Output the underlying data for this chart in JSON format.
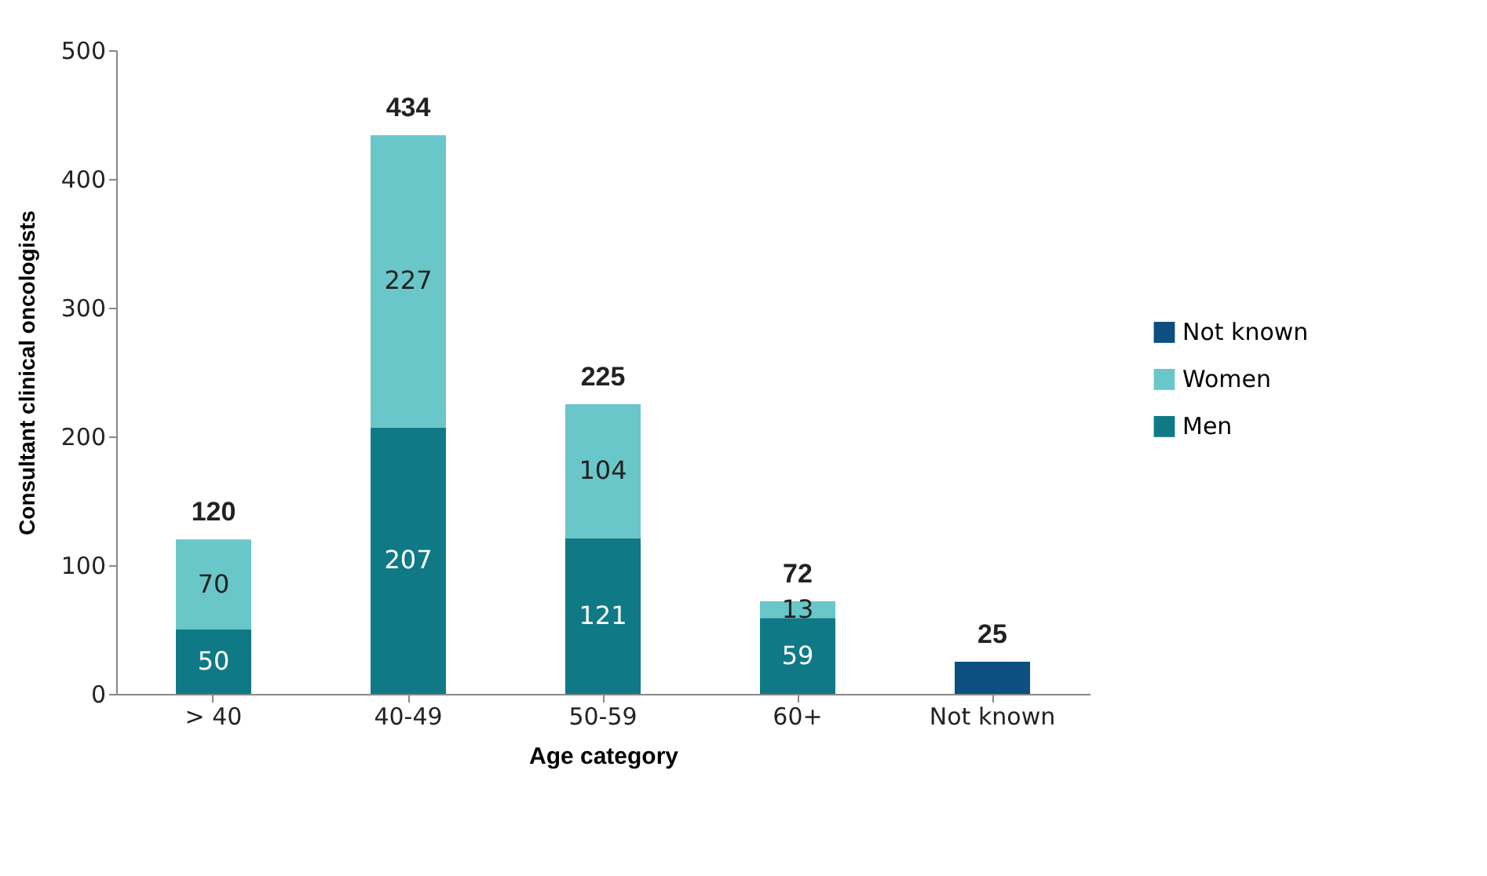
{
  "chart_data": {
    "type": "bar",
    "stacked": true,
    "xlabel": "Age category",
    "ylabel": "Consultant clinical oncologists",
    "categories": [
      "> 40",
      "40-49",
      "50-59",
      "60+",
      "Not known"
    ],
    "series": [
      {
        "name": "Men",
        "color": "#0f7a86",
        "values": [
          50,
          207,
          121,
          59,
          null
        ],
        "value_labels": [
          "50",
          "207",
          "121",
          "59",
          null
        ]
      },
      {
        "name": "Women",
        "color": "#6ac7c9",
        "values": [
          70,
          227,
          104,
          13,
          null
        ],
        "value_labels": [
          "70",
          "227",
          "104",
          "13",
          null
        ]
      },
      {
        "name": "Not known",
        "color": "#0c4f80",
        "values": [
          null,
          null,
          null,
          null,
          25
        ]
      }
    ],
    "totals": [
      "120",
      "434",
      "225",
      "72",
      "25"
    ],
    "ylim": [
      0,
      500
    ],
    "yticks": [
      0,
      100,
      200,
      300,
      400,
      500
    ],
    "grid": false,
    "legend": "right"
  }
}
